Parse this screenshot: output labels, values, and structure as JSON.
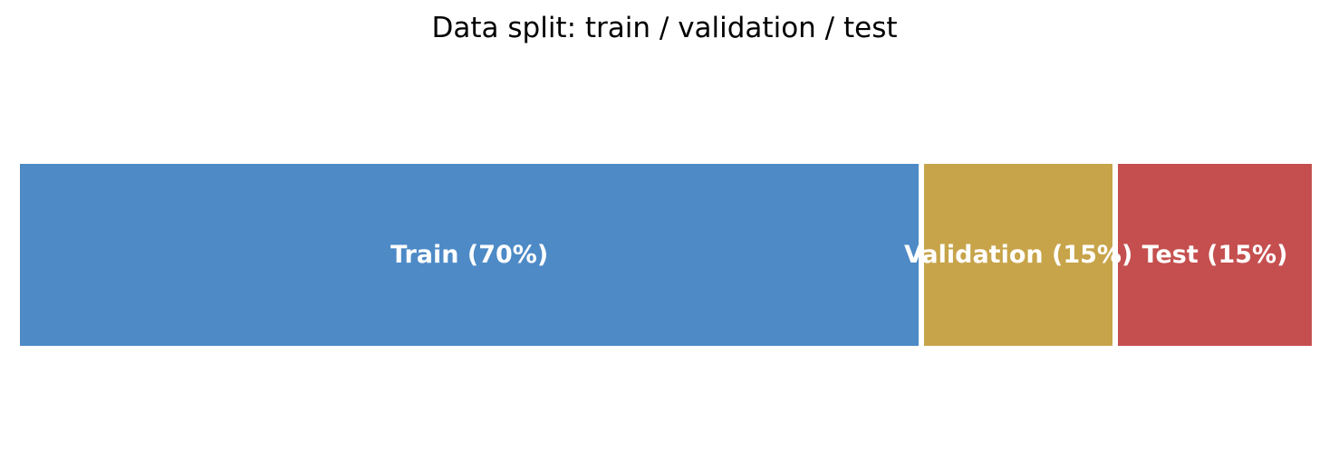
{
  "chart_data": {
    "type": "bar",
    "variant": "horizontal-proportional-stacked",
    "title": "Data split: train / validation / test",
    "total": 100,
    "categories": [
      "Train",
      "Validation",
      "Test"
    ],
    "values": [
      70,
      15,
      15
    ],
    "segments": [
      {
        "name": "Train",
        "value": 70,
        "label": "Train (70%)",
        "color": "#4d8ac6"
      },
      {
        "name": "Validation",
        "value": 15,
        "label": "Validation (15%)",
        "color": "#c7a44a"
      },
      {
        "name": "Test",
        "value": 15,
        "label": "Test (15%)",
        "color": "#c54f4f"
      }
    ],
    "label_color": "#ffffff",
    "title_color": "#000000",
    "background": "#ffffff",
    "axes": "hidden",
    "grid": "off",
    "legend": "none"
  }
}
